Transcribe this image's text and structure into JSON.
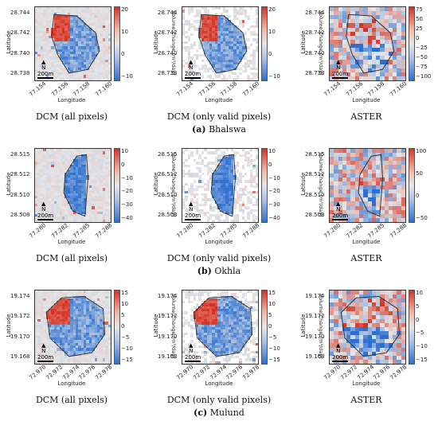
{
  "colors": {
    "positive": "#d7301f",
    "negative": "#2c6fd1",
    "neutral": "#e6e6e6",
    "boundary": "#333333"
  },
  "common": {
    "latitude_label": "Latitude",
    "longitude_label": "Longitude",
    "colorbar_label": "Volume Change (m³/day)",
    "north_label": "N",
    "north_arrow": "▲"
  },
  "rows": [
    {
      "site": "Bhalswa",
      "letter": "(a)",
      "lat_ticks": [
        "28.744",
        "28.742",
        "28.740",
        "28.738"
      ],
      "lon_ticks": [
        "77.154",
        "77.156",
        "77.158",
        "77.160"
      ],
      "panels": [
        {
          "caption": "DCM (all pixels)",
          "cbar_ticks": [
            "20",
            "10",
            "0",
            "−10"
          ],
          "scale": "200m"
        },
        {
          "caption": "DCM (only valid pixels)",
          "cbar_ticks": [
            "20",
            "10",
            "0",
            "−10"
          ],
          "scale": "200m"
        },
        {
          "caption": "ASTER",
          "cbar_ticks": [
            "75",
            "50",
            "25",
            "0",
            "−25",
            "−50",
            "−75",
            "−100"
          ],
          "scale": "200m"
        }
      ]
    },
    {
      "site": "Okhla",
      "letter": "(b)",
      "lat_ticks": [
        "28.515",
        "28.512",
        "28.510",
        "28.508"
      ],
      "lon_ticks": [
        "77.280",
        "77.282",
        "77.285",
        "77.288"
      ],
      "panels": [
        {
          "caption": "DCM (all pixels)",
          "cbar_ticks": [
            "10",
            "0",
            "−10",
            "−20",
            "−30",
            "−40"
          ],
          "scale": "200m"
        },
        {
          "caption": "DCM (only valid pixels)",
          "cbar_ticks": [
            "10",
            "0",
            "−10",
            "−20",
            "−30",
            "−40"
          ],
          "scale": "200m"
        },
        {
          "caption": "ASTER",
          "cbar_ticks": [
            "100",
            "50",
            "0",
            "−50"
          ],
          "scale": "200m"
        }
      ]
    },
    {
      "site": "Mulund",
      "letter": "(c)",
      "lat_ticks": [
        "19.174",
        "19.172",
        "19.170",
        "19.168"
      ],
      "lon_ticks": [
        "72.970",
        "72.972",
        "72.974",
        "72.976",
        "72.978"
      ],
      "panels": [
        {
          "caption": "DCM (all pixels)",
          "cbar_ticks": [
            "15",
            "10",
            "5",
            "0",
            "−5",
            "−10",
            "−15"
          ],
          "scale": "200m"
        },
        {
          "caption": "DCM (only valid pixels)",
          "cbar_ticks": [
            "15",
            "10",
            "5",
            "0",
            "−5",
            "−10",
            "−15"
          ],
          "scale": "200m"
        },
        {
          "caption": "ASTER",
          "cbar_ticks": [
            "10",
            "5",
            "0",
            "−5",
            "−10",
            "−15"
          ],
          "scale": "200m"
        }
      ]
    }
  ]
}
